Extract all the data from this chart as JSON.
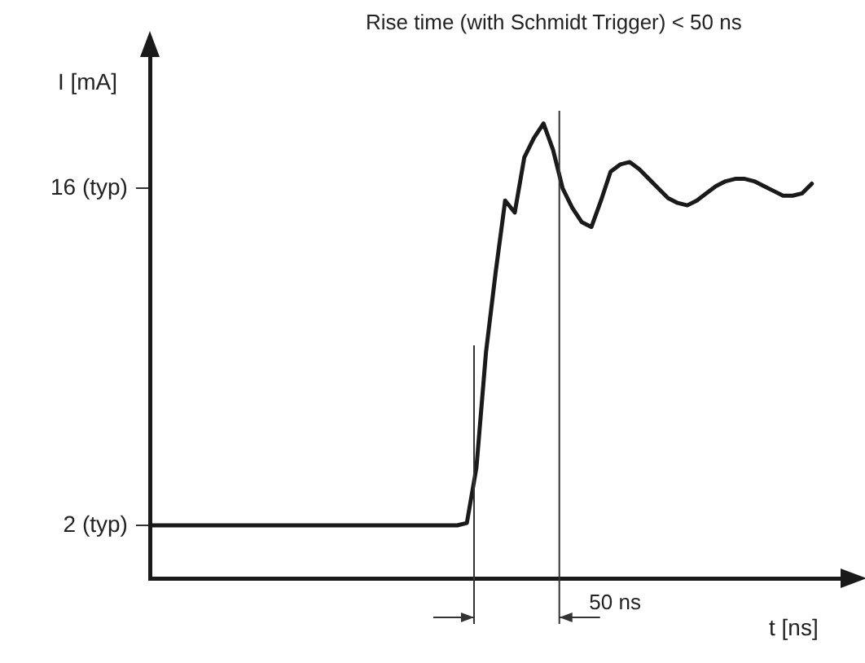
{
  "chart_data": {
    "type": "line",
    "title": "Rise time (with Schmidt Trigger) < 50 ns",
    "xlabel": "t [ns]",
    "ylabel": "I [mA]",
    "annotations": [
      "50 ns"
    ],
    "categories": [
      null,
      null,
      null,
      null,
      null,
      null,
      null,
      null,
      null,
      null,
      null,
      null,
      null,
      null,
      null,
      null,
      null,
      null,
      null,
      null,
      null,
      null,
      null,
      null,
      null,
      null,
      null,
      null,
      null,
      null,
      null,
      null,
      null,
      null,
      null,
      null,
      null,
      null,
      null,
      null,
      null,
      null,
      null,
      null,
      null,
      null,
      null,
      null,
      null,
      null,
      null,
      null,
      null,
      null,
      null,
      null,
      null,
      null,
      null,
      null,
      null,
      null,
      null,
      null,
      null,
      null,
      null,
      null,
      null,
      null,
      null,
      null,
      null
    ],
    "series": [
      {
        "color": "#1a1a1a",
        "values": [
          2,
          2,
          2,
          2,
          2,
          2,
          2,
          2,
          2,
          2,
          2,
          2,
          2,
          2,
          2,
          2,
          2,
          2,
          2,
          2,
          2,
          2,
          2,
          2,
          2,
          2,
          2,
          2,
          2,
          2,
          2,
          2,
          2,
          2.1,
          4.4,
          9.2,
          12.5,
          15.5,
          15.0,
          17.3,
          18.1,
          18.7,
          17.6,
          16.0,
          15.2,
          14.6,
          14.4,
          15.5,
          16.7,
          17.0,
          17.1,
          16.8,
          16.4,
          16.0,
          15.6,
          15.4,
          15.3,
          15.5,
          15.8,
          16.1,
          16.3,
          16.4,
          16.4,
          16.3,
          16.1,
          15.9,
          15.7,
          15.7,
          15.8,
          16.2,
          null,
          null,
          null
        ]
      }
    ],
    "ylim": [
      -0.2,
      21.6
    ],
    "yticks": [
      {
        "value": 2,
        "label": "2 (typ)"
      },
      {
        "value": 16,
        "label": "16 (typ)"
      }
    ],
    "grid": false,
    "legend": false,
    "marker": "none",
    "line_style": "solid"
  }
}
